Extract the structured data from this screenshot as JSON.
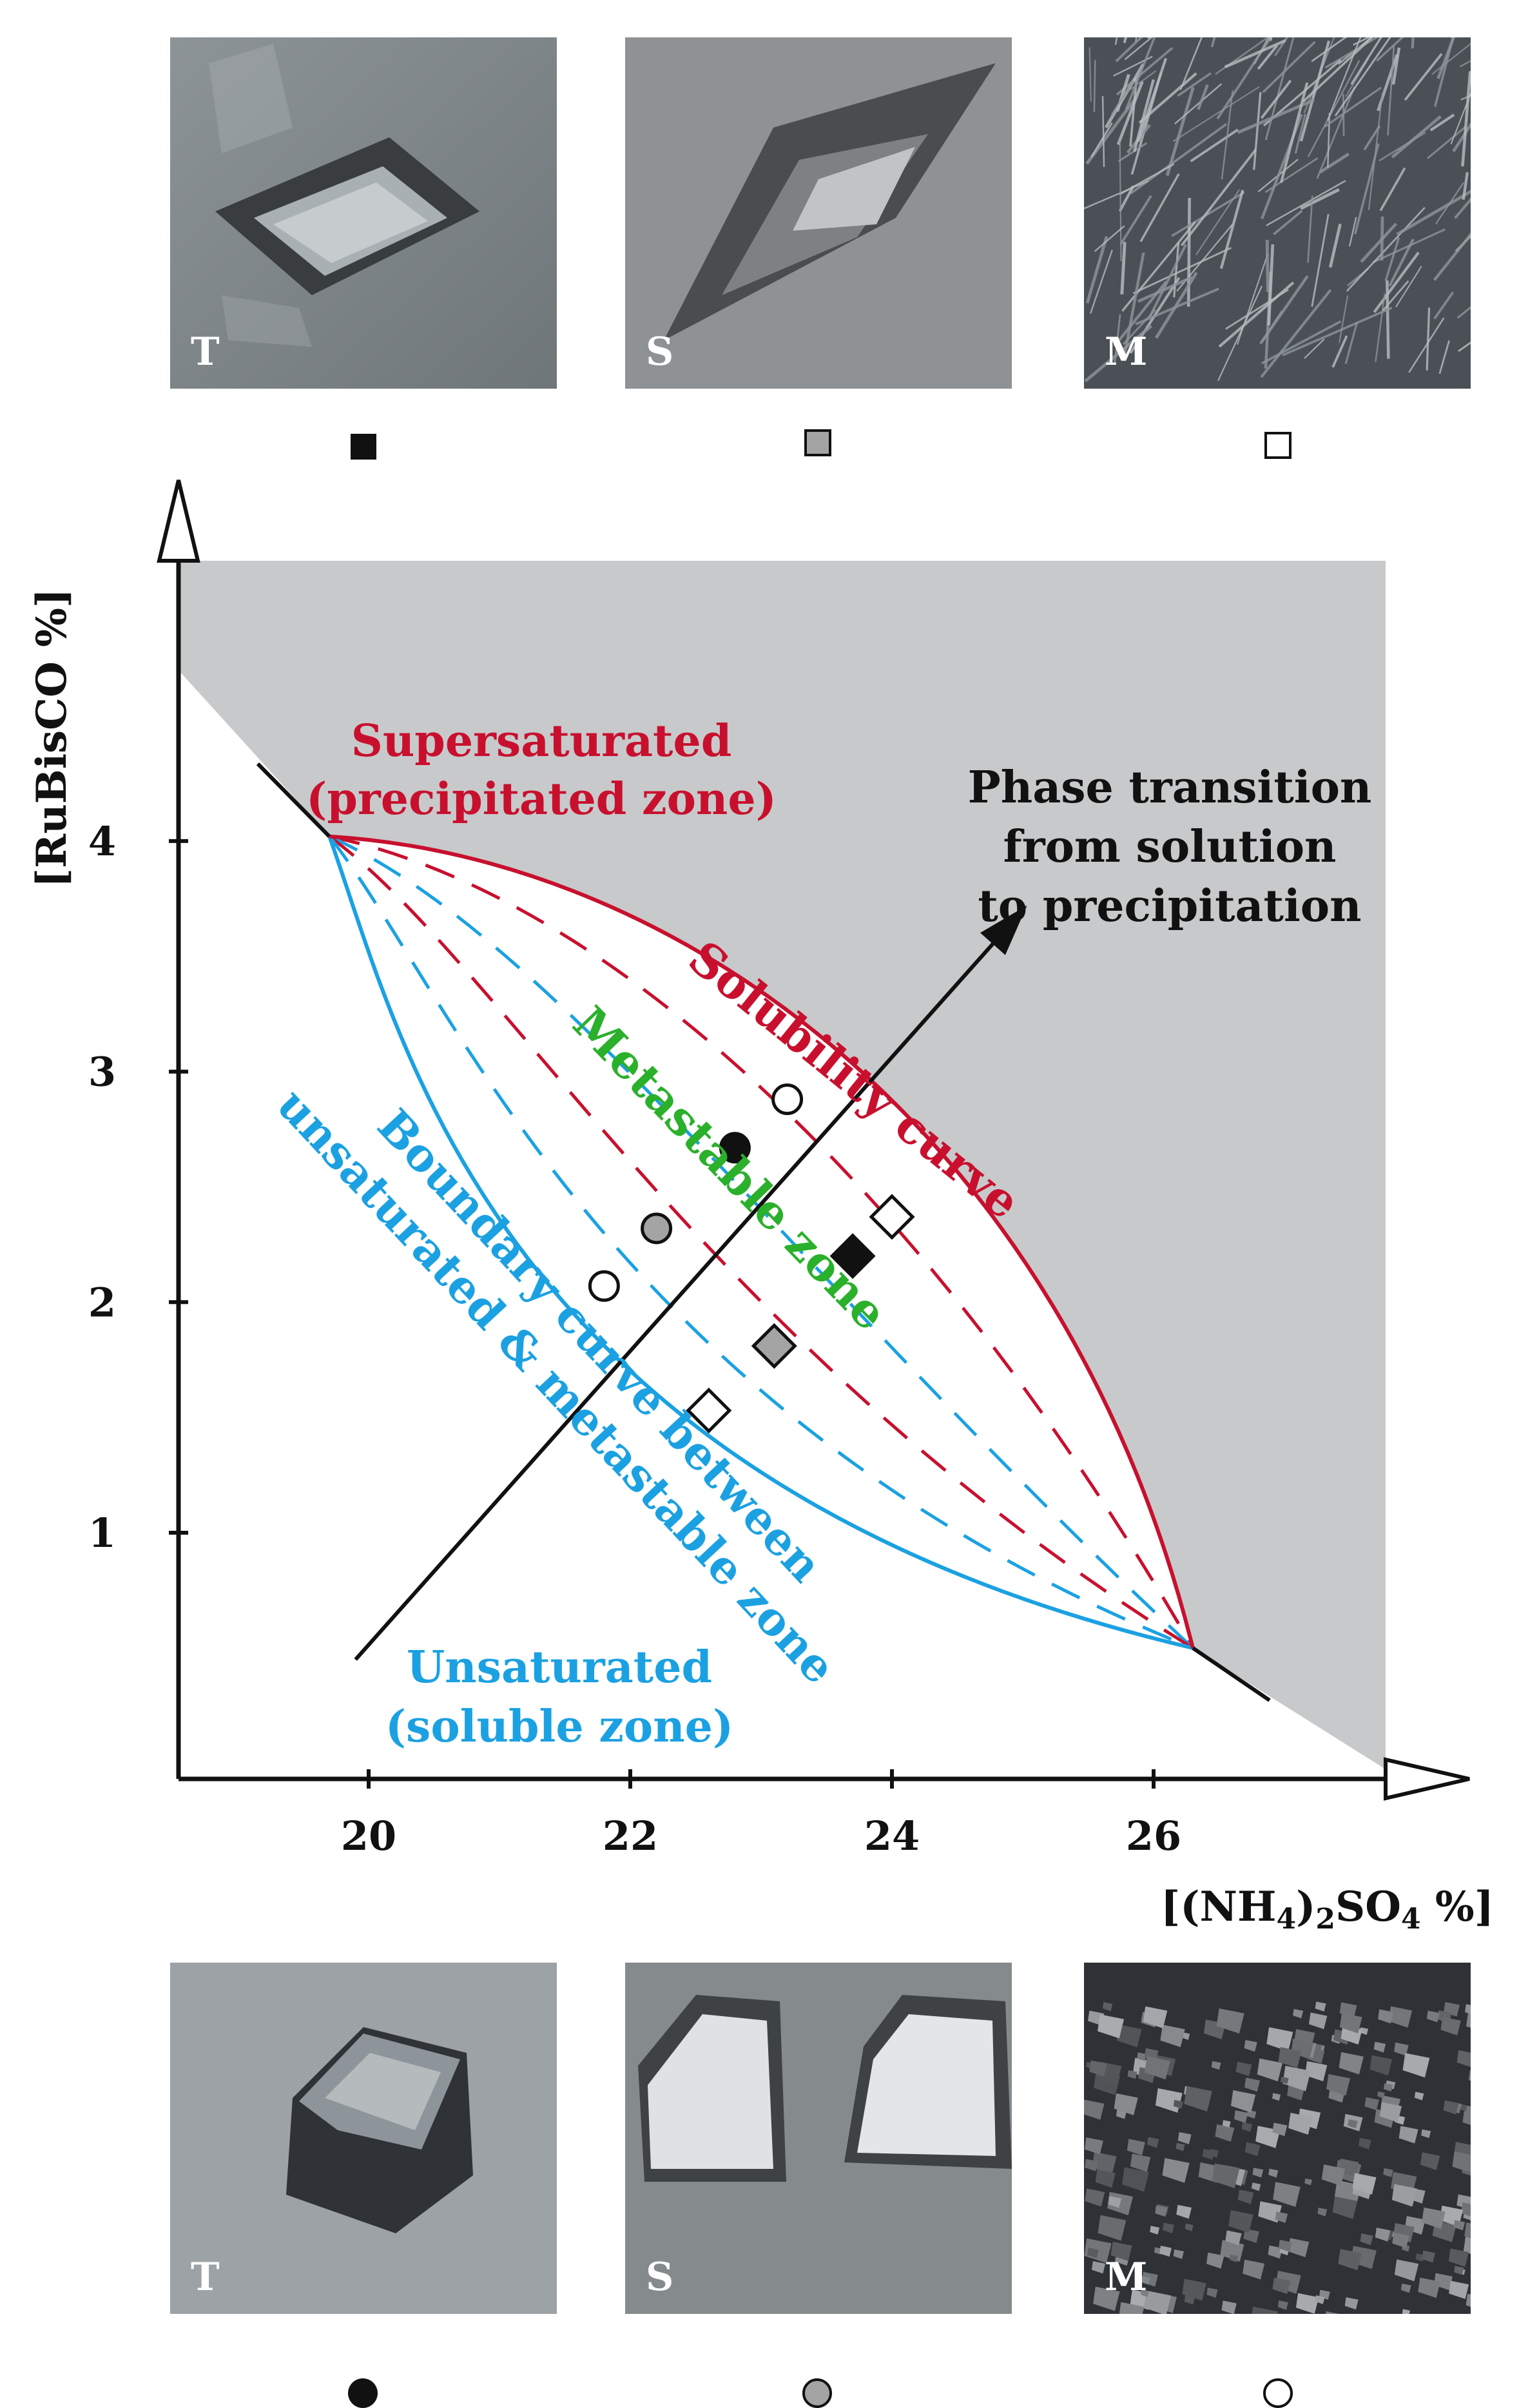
{
  "photos_top": [
    {
      "label": "T",
      "marker": "filled-square"
    },
    {
      "label": "S",
      "marker": "gray-square"
    },
    {
      "label": "M",
      "marker": "open-square"
    }
  ],
  "photos_bottom": [
    {
      "label": "T",
      "marker": "filled-circle"
    },
    {
      "label": "S",
      "marker": "gray-circle"
    },
    {
      "label": "M",
      "marker": "open-circle"
    }
  ],
  "colors": {
    "solubility": "#c8102e",
    "boundary": "#1ba1e2",
    "metastable": "#2bb02b",
    "shade": "#c8c9ca",
    "axis": "#111111"
  },
  "chart_data": {
    "type": "scatter",
    "xlabel": "[(NH4)2SO4 %]",
    "ylabel": "[RuBisCO %]",
    "x_ticks": [
      "20",
      "22",
      "24",
      "26"
    ],
    "y_ticks": [
      "1",
      "2",
      "3",
      "4"
    ],
    "xlim": [
      18.5,
      28
    ],
    "ylim": [
      0,
      5.3
    ],
    "annotations": {
      "supersaturated": [
        "Supersaturated",
        "(precipitated zone)"
      ],
      "phase_transition": [
        "Phase transition",
        "from solution",
        "to precipitation"
      ],
      "solubility_curve": "Solubility curve",
      "metastable_zone": "Metastable zone",
      "boundary_curve": [
        "Boundary curve between",
        "unsaturated & metastable zone"
      ],
      "unsaturated": [
        "Unsaturated",
        "(soluble zone)"
      ]
    },
    "curves": {
      "solubility": {
        "from": [
          19.7,
          4.02
        ],
        "to": [
          26.3,
          0.5
        ]
      },
      "boundary": {
        "from": [
          19.7,
          4.02
        ],
        "to": [
          26.3,
          0.5
        ]
      }
    },
    "phase_arrow": {
      "from": [
        19.9,
        0.45
      ],
      "to": [
        25.0,
        3.7
      ]
    },
    "points": [
      {
        "shape": "circle",
        "fill": "black",
        "x": 22.8,
        "y": 2.67
      },
      {
        "shape": "circle",
        "fill": "gray",
        "x": 22.2,
        "y": 2.32
      },
      {
        "shape": "circle",
        "fill": "open",
        "x": 21.8,
        "y": 2.07
      },
      {
        "shape": "circle",
        "fill": "open",
        "x": 23.2,
        "y": 2.88
      },
      {
        "shape": "diamond",
        "fill": "black",
        "x": 23.7,
        "y": 2.2
      },
      {
        "shape": "diamond",
        "fill": "open",
        "x": 24.0,
        "y": 2.37
      },
      {
        "shape": "diamond",
        "fill": "gray",
        "x": 23.1,
        "y": 1.81
      },
      {
        "shape": "diamond",
        "fill": "open",
        "x": 22.6,
        "y": 1.53
      }
    ]
  }
}
